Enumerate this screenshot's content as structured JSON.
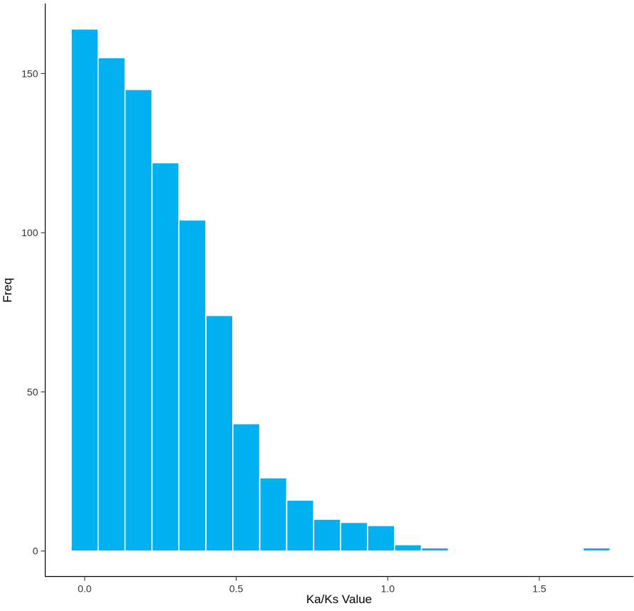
{
  "chart_data": {
    "type": "bar",
    "title": "",
    "xlabel": "Ka/Ks Value",
    "ylabel": "Freq",
    "bin_width": 0.0889,
    "x_ticks": [
      "0.0",
      "0.5",
      "1.0",
      "1.5"
    ],
    "x_tick_values": [
      0.0,
      0.5,
      1.0,
      1.5
    ],
    "y_ticks": [
      "0",
      "50",
      "100",
      "150"
    ],
    "y_tick_values": [
      0,
      50,
      100,
      150
    ],
    "xlim": [
      -0.13,
      1.81
    ],
    "ylim": [
      -8,
      172
    ],
    "grid": false,
    "legend": "none",
    "bar_color": "#00B0F0",
    "bar_outline": "#ffffff",
    "bins": [
      {
        "x": 0.0,
        "count": 164
      },
      {
        "x": 0.0889,
        "count": 155
      },
      {
        "x": 0.1778,
        "count": 145
      },
      {
        "x": 0.2667,
        "count": 122
      },
      {
        "x": 0.3556,
        "count": 104
      },
      {
        "x": 0.4444,
        "count": 74
      },
      {
        "x": 0.5333,
        "count": 40
      },
      {
        "x": 0.6222,
        "count": 23
      },
      {
        "x": 0.7111,
        "count": 16
      },
      {
        "x": 0.8,
        "count": 10
      },
      {
        "x": 0.8889,
        "count": 9
      },
      {
        "x": 0.9778,
        "count": 8
      },
      {
        "x": 1.0667,
        "count": 2
      },
      {
        "x": 1.1556,
        "count": 1
      },
      {
        "x": 1.2444,
        "count": 0
      },
      {
        "x": 1.3333,
        "count": 0
      },
      {
        "x": 1.4222,
        "count": 0
      },
      {
        "x": 1.5111,
        "count": 0
      },
      {
        "x": 1.6,
        "count": 0
      },
      {
        "x": 1.6889,
        "count": 1
      }
    ]
  }
}
